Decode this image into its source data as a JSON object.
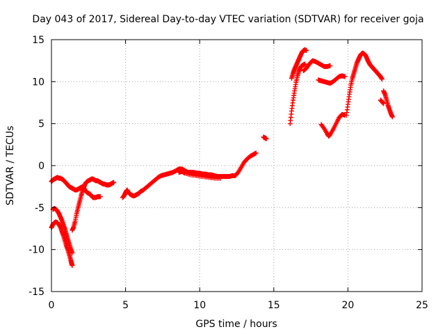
{
  "chart_data": {
    "type": "scatter",
    "title": "Day 043 of 2017, Sidereal Day-to-day VTEC variation (SDTVAR) for receiver goja",
    "xlabel": "GPS time / hours",
    "ylabel": "SDTVAR / TECUs",
    "xlim": [
      0,
      25
    ],
    "ylim": [
      -15,
      15
    ],
    "xticks": [
      0,
      5,
      10,
      15,
      20,
      25
    ],
    "yticks": [
      -15,
      -10,
      -5,
      0,
      5,
      10,
      15
    ],
    "grid": true,
    "marker": "+",
    "color": "#ff0000",
    "series": [
      {
        "segments": [
          [
            [
              0.0,
              -1.9
            ],
            [
              0.1,
              -1.7
            ],
            [
              0.2,
              -1.6
            ],
            [
              0.3,
              -1.5
            ],
            [
              0.4,
              -1.4
            ],
            [
              0.5,
              -1.5
            ],
            [
              0.6,
              -1.5
            ],
            [
              0.7,
              -1.6
            ],
            [
              0.8,
              -1.7
            ],
            [
              0.9,
              -1.9
            ],
            [
              1.0,
              -2.1
            ],
            [
              1.1,
              -2.3
            ],
            [
              1.2,
              -2.5
            ],
            [
              1.3,
              -2.6
            ],
            [
              1.4,
              -2.7
            ],
            [
              1.5,
              -2.8
            ],
            [
              1.6,
              -2.9
            ],
            [
              1.7,
              -2.9
            ],
            [
              1.8,
              -2.8
            ],
            [
              1.9,
              -2.7
            ],
            [
              2.0,
              -2.6
            ],
            [
              2.1,
              -2.5
            ],
            [
              2.2,
              -2.7
            ],
            [
              2.3,
              -3.0
            ],
            [
              2.4,
              -3.2
            ],
            [
              2.5,
              -3.3
            ],
            [
              2.6,
              -3.4
            ],
            [
              2.7,
              -3.6
            ],
            [
              2.8,
              -3.8
            ],
            [
              2.9,
              -3.8
            ],
            [
              3.0,
              -3.8
            ],
            [
              3.1,
              -3.7
            ],
            [
              3.2,
              -3.7
            ],
            [
              3.3,
              -3.7
            ]
          ],
          [
            [
              0.0,
              -7.4
            ],
            [
              0.1,
              -7.0
            ],
            [
              0.2,
              -6.8
            ],
            [
              0.3,
              -6.7
            ],
            [
              0.4,
              -6.8
            ],
            [
              0.5,
              -7.0
            ],
            [
              0.6,
              -7.3
            ],
            [
              0.7,
              -7.8
            ],
            [
              0.8,
              -8.3
            ],
            [
              0.9,
              -8.9
            ],
            [
              1.0,
              -9.5
            ],
            [
              1.1,
              -10.0
            ],
            [
              1.2,
              -10.6
            ],
            [
              1.3,
              -11.2
            ],
            [
              1.35,
              -11.6
            ],
            [
              1.4,
              -11.9
            ]
          ],
          [
            [
              0.1,
              -5.2
            ],
            [
              0.2,
              -5.1
            ],
            [
              0.3,
              -5.2
            ],
            [
              0.4,
              -5.4
            ],
            [
              0.5,
              -5.7
            ],
            [
              0.6,
              -6.1
            ],
            [
              0.7,
              -6.5
            ],
            [
              0.8,
              -7.0
            ],
            [
              0.9,
              -7.5
            ],
            [
              1.0,
              -8.1
            ],
            [
              1.1,
              -8.7
            ],
            [
              1.2,
              -9.3
            ],
            [
              1.3,
              -9.9
            ],
            [
              1.4,
              -10.4
            ]
          ],
          [
            [
              1.4,
              -7.7
            ],
            [
              1.5,
              -7.3
            ],
            [
              1.6,
              -6.6
            ],
            [
              1.7,
              -5.7
            ],
            [
              1.8,
              -5.0
            ],
            [
              1.9,
              -4.3
            ],
            [
              2.0,
              -3.6
            ],
            [
              2.1,
              -3.0
            ],
            [
              2.2,
              -2.5
            ],
            [
              2.3,
              -2.1
            ],
            [
              2.4,
              -1.9
            ],
            [
              2.5,
              -1.8
            ],
            [
              2.6,
              -1.7
            ],
            [
              2.7,
              -1.6
            ],
            [
              2.8,
              -1.6
            ],
            [
              2.9,
              -1.7
            ],
            [
              3.0,
              -1.8
            ],
            [
              3.1,
              -1.8
            ],
            [
              3.2,
              -1.9
            ],
            [
              3.3,
              -2.0
            ],
            [
              3.4,
              -2.1
            ],
            [
              3.5,
              -2.2
            ],
            [
              3.6,
              -2.2
            ],
            [
              3.7,
              -2.3
            ],
            [
              3.8,
              -2.3
            ],
            [
              3.9,
              -2.3
            ],
            [
              4.0,
              -2.2
            ],
            [
              4.1,
              -2.1
            ],
            [
              4.2,
              -2.0
            ]
          ],
          [
            [
              4.8,
              -3.8
            ],
            [
              4.9,
              -3.6
            ],
            [
              5.0,
              -3.2
            ],
            [
              5.1,
              -2.9
            ],
            [
              5.2,
              -3.2
            ],
            [
              5.3,
              -3.4
            ],
            [
              5.4,
              -3.5
            ],
            [
              5.5,
              -3.6
            ],
            [
              5.6,
              -3.6
            ],
            [
              5.7,
              -3.5
            ],
            [
              5.8,
              -3.4
            ],
            [
              5.9,
              -3.3
            ],
            [
              6.0,
              -3.1
            ],
            [
              6.2,
              -2.9
            ],
            [
              6.4,
              -2.6
            ],
            [
              6.6,
              -2.3
            ],
            [
              6.8,
              -2.0
            ],
            [
              7.0,
              -1.7
            ],
            [
              7.2,
              -1.4
            ],
            [
              7.4,
              -1.2
            ],
            [
              7.6,
              -1.1
            ],
            [
              7.8,
              -1.0
            ],
            [
              8.0,
              -0.9
            ],
            [
              8.2,
              -0.8
            ],
            [
              8.4,
              -0.6
            ],
            [
              8.6,
              -0.4
            ],
            [
              8.8,
              -0.4
            ],
            [
              9.0,
              -0.6
            ],
            [
              9.2,
              -0.8
            ],
            [
              9.4,
              -0.8
            ],
            [
              9.6,
              -0.8
            ],
            [
              9.8,
              -0.9
            ],
            [
              10.0,
              -0.9
            ],
            [
              10.2,
              -1.0
            ],
            [
              10.4,
              -1.0
            ],
            [
              10.6,
              -1.1
            ],
            [
              10.8,
              -1.1
            ],
            [
              11.0,
              -1.2
            ],
            [
              11.2,
              -1.3
            ],
            [
              11.4,
              -1.3
            ],
            [
              11.6,
              -1.3
            ],
            [
              11.8,
              -1.3
            ],
            [
              12.0,
              -1.3
            ],
            [
              12.2,
              -1.2
            ],
            [
              12.4,
              -1.2
            ],
            [
              12.6,
              -0.8
            ],
            [
              12.8,
              -0.2
            ],
            [
              13.0,
              0.4
            ],
            [
              13.2,
              0.8
            ],
            [
              13.4,
              1.1
            ],
            [
              13.6,
              1.3
            ],
            [
              13.8,
              1.5
            ]
          ],
          [
            [
              8.6,
              -0.8
            ],
            [
              8.8,
              -0.7
            ],
            [
              9.0,
              -0.9
            ],
            [
              9.4,
              -1.1
            ],
            [
              9.8,
              -1.2
            ],
            [
              10.2,
              -1.3
            ],
            [
              10.6,
              -1.4
            ],
            [
              11.0,
              -1.5
            ],
            [
              11.4,
              -1.5
            ]
          ],
          [
            [
              14.3,
              3.4
            ],
            [
              14.4,
              3.3
            ],
            [
              14.5,
              3.2
            ]
          ],
          [
            [
              16.1,
              5.0
            ],
            [
              16.2,
              6.5
            ],
            [
              16.3,
              7.8
            ],
            [
              16.4,
              8.9
            ],
            [
              16.5,
              9.9
            ],
            [
              16.6,
              10.7
            ],
            [
              16.7,
              11.3
            ],
            [
              16.8,
              11.7
            ],
            [
              16.9,
              11.9
            ],
            [
              17.0,
              12.0
            ],
            [
              17.1,
              12.1
            ]
          ],
          [
            [
              16.2,
              10.4
            ],
            [
              16.3,
              11.0
            ],
            [
              16.4,
              11.5
            ],
            [
              16.5,
              11.9
            ],
            [
              16.6,
              12.3
            ],
            [
              16.7,
              12.7
            ],
            [
              16.8,
              13.1
            ],
            [
              16.9,
              13.5
            ],
            [
              17.0,
              13.7
            ],
            [
              17.1,
              13.8
            ],
            [
              17.2,
              13.7
            ]
          ],
          [
            [
              17.0,
              11.3
            ],
            [
              17.2,
              11.6
            ],
            [
              17.4,
              12.1
            ],
            [
              17.6,
              12.5
            ],
            [
              17.8,
              12.4
            ],
            [
              18.0,
              12.2
            ],
            [
              18.2,
              12.0
            ],
            [
              18.4,
              11.8
            ],
            [
              18.6,
              11.8
            ],
            [
              18.8,
              11.9
            ]
          ],
          [
            [
              18.0,
              10.2
            ],
            [
              18.2,
              10.1
            ],
            [
              18.4,
              10.0
            ],
            [
              18.6,
              9.9
            ],
            [
              18.8,
              9.8
            ],
            [
              19.0,
              10.0
            ],
            [
              19.2,
              10.3
            ],
            [
              19.4,
              10.6
            ],
            [
              19.6,
              10.7
            ],
            [
              19.8,
              10.6
            ]
          ],
          [
            [
              18.2,
              4.9
            ],
            [
              18.4,
              4.4
            ],
            [
              18.6,
              3.8
            ],
            [
              18.7,
              3.5
            ],
            [
              18.8,
              3.7
            ],
            [
              19.0,
              4.3
            ],
            [
              19.2,
              5.0
            ],
            [
              19.4,
              5.7
            ],
            [
              19.6,
              6.1
            ],
            [
              19.8,
              6.0
            ]
          ],
          [
            [
              19.9,
              6.0
            ],
            [
              20.0,
              7.3
            ],
            [
              20.1,
              8.5
            ],
            [
              20.2,
              9.6
            ],
            [
              20.3,
              10.4
            ],
            [
              20.4,
              11.0
            ],
            [
              20.5,
              11.6
            ],
            [
              20.6,
              12.2
            ],
            [
              20.7,
              12.6
            ],
            [
              20.8,
              13.0
            ],
            [
              20.9,
              13.3
            ],
            [
              21.0,
              13.4
            ],
            [
              21.1,
              13.3
            ],
            [
              21.2,
              13.1
            ],
            [
              21.3,
              12.7
            ],
            [
              21.4,
              12.3
            ],
            [
              21.5,
              12.0
            ],
            [
              21.6,
              11.8
            ],
            [
              21.7,
              11.6
            ],
            [
              21.8,
              11.4
            ],
            [
              21.9,
              11.2
            ],
            [
              22.0,
              11.0
            ],
            [
              22.1,
              10.8
            ],
            [
              22.2,
              10.6
            ],
            [
              22.3,
              10.3
            ]
          ],
          [
            [
              22.2,
              7.8
            ],
            [
              22.3,
              7.6
            ],
            [
              22.4,
              7.4
            ]
          ],
          [
            [
              22.4,
              8.9
            ],
            [
              22.5,
              8.5
            ],
            [
              22.6,
              7.9
            ],
            [
              22.7,
              7.2
            ],
            [
              22.8,
              6.7
            ],
            [
              22.9,
              6.2
            ],
            [
              23.0,
              5.8
            ]
          ]
        ]
      }
    ]
  }
}
